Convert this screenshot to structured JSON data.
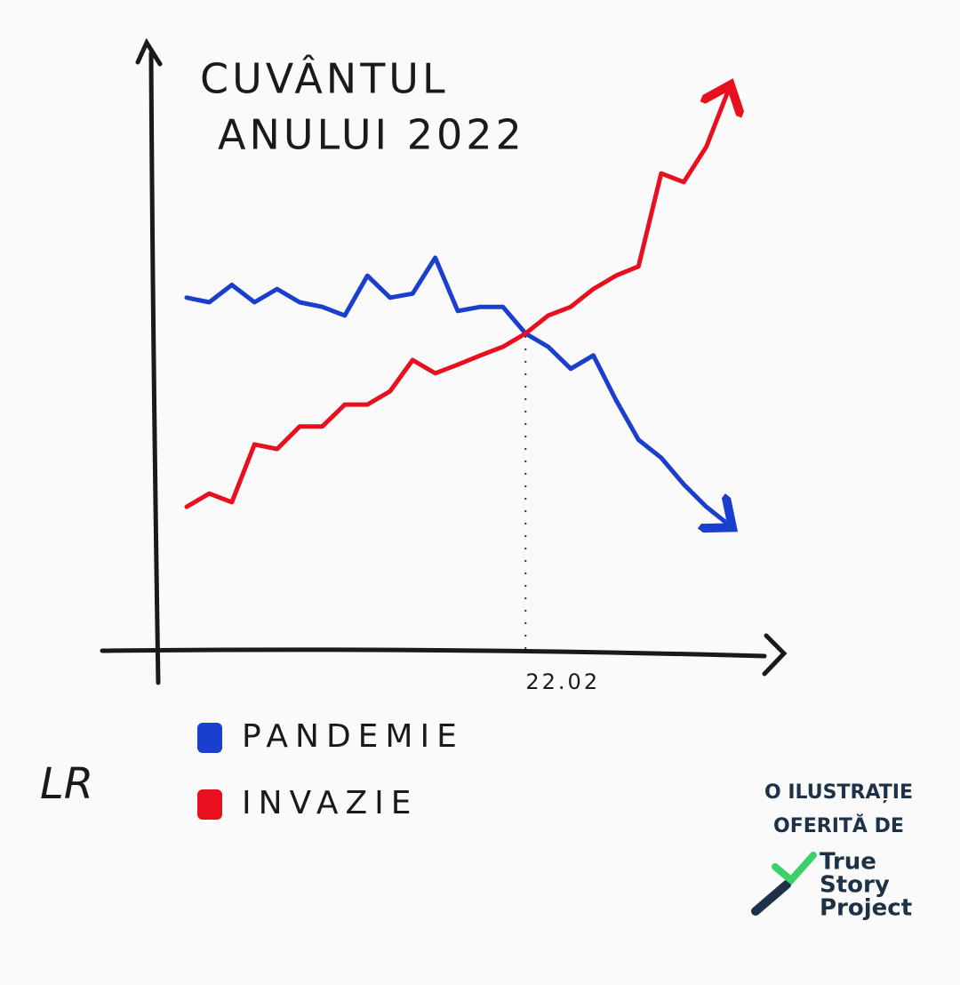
{
  "chart_data": {
    "type": "line",
    "title": [
      "CUVÂNTUL",
      "ANULUI 2022"
    ],
    "categories": [
      null,
      null,
      null,
      null,
      null,
      null,
      null,
      null,
      null,
      null,
      null,
      null,
      null,
      null,
      null,
      "22.02",
      null,
      null,
      null,
      null,
      null,
      null,
      null,
      null,
      null
    ],
    "ylim": [
      0,
      100
    ],
    "series": [
      {
        "name": "PANDEMIE",
        "color": "#1a3fcf",
        "values": [
          60.8,
          60,
          63,
          60,
          62.3,
          60,
          59.2,
          57.7,
          64.6,
          60.8,
          61.5,
          67.7,
          58.5,
          59.2,
          59.2,
          54.6,
          52.3,
          48.5,
          50.8,
          43.1,
          36.2,
          33.1,
          28.5,
          24.6,
          21.5
        ]
      },
      {
        "name": "INVAZIE",
        "color": "#e8101e",
        "values": [
          24.6,
          26.9,
          25.4,
          35.4,
          34.6,
          38.5,
          38.5,
          42.3,
          42.3,
          44.6,
          50,
          47.7,
          49.2,
          50.8,
          52.3,
          54.6,
          57.7,
          59.2,
          62.3,
          64.6,
          66.2,
          82.3,
          80.8,
          86.9,
          96.9
        ]
      }
    ],
    "annotations": [
      "LR",
      "O ILUSTRAȚIE",
      "OFERITĂ DE",
      "True",
      "Story",
      "Project"
    ]
  }
}
